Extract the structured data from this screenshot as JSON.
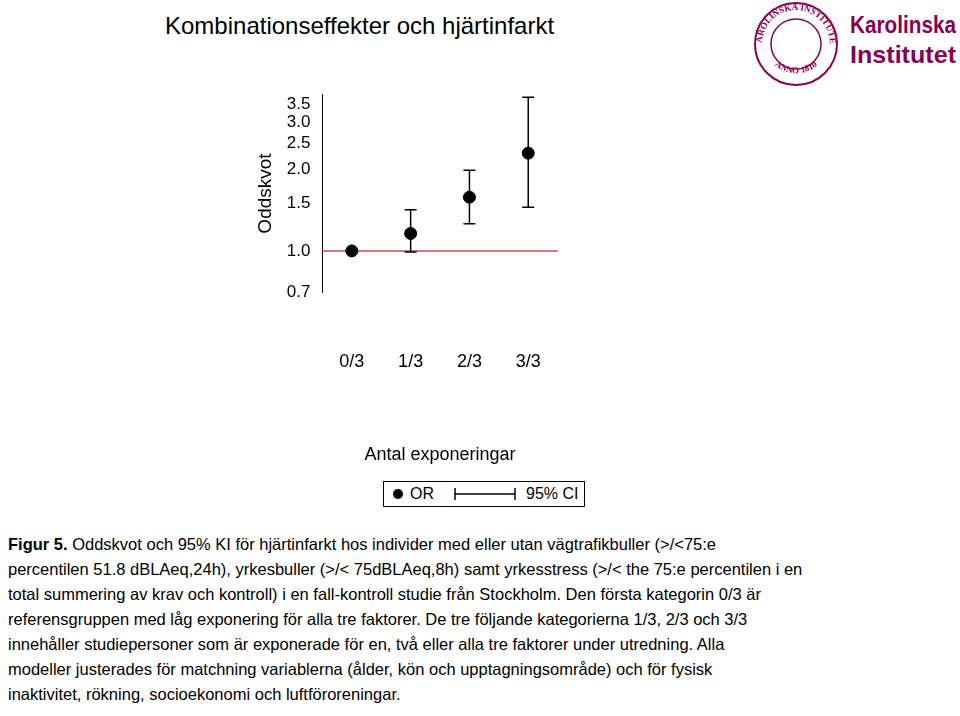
{
  "chart_data": {
    "type": "line",
    "title": "Kombinationseffekter och hjärtinfarkt",
    "x_label": "Antal exponeringar",
    "y_label": "Oddskvot",
    "categories": [
      "0/3",
      "1/3",
      "2/3",
      "3/3"
    ],
    "series": [
      {
        "name": "OR",
        "color": "#000000",
        "marker": "circle",
        "line_style": "none",
        "values": [
          1.0,
          1.16,
          1.58,
          2.3
        ]
      }
    ],
    "error_bars": {
      "name": "95% CI",
      "lower": [
        null,
        0.99,
        1.26,
        1.45
      ],
      "upper": [
        null,
        1.42,
        1.99,
        3.7
      ]
    },
    "reference_line": {
      "value": 1,
      "color": "#c0504d"
    },
    "log": "y",
    "ylim": [
      0.7,
      3.8
    ],
    "yticks": [
      0.7,
      {
        "value": 1,
        "label": "1.0"
      },
      1.5,
      {
        "value": 2,
        "label": "2.0"
      },
      2.5,
      {
        "value": 3,
        "label": "3.0"
      },
      3.5
    ],
    "grid": false
  },
  "caption": {
    "label": "Figur 5.",
    "lines": [
      " Oddskvot och 95% KI för hjärtinfarkt hos individer med eller utan vägtrafikbuller (>/<75:e",
      "percentilen 51.8 dBLAeq,24h), yrkesbuller (>/< 75dBLAeq,8h) samt yrkesstress (>/< the 75:e percentilen i en",
      "total summering av krav och kontroll) i en fall-kontroll studie från Stockholm. Den första kategorin 0/3 är",
      "referensgruppen med låg exponering för alla tre faktorer. De tre följande kategorierna 1/3, 2/3 och 3/3",
      "innehåller studiepersoner som är exponerade för en, två eller alla tre faktorer under utredning. Alla",
      "modeller justerades för matchning variablerna (ålder, kön och upptagningsområde) och för fysisk",
      "inaktivitet, rökning, socioekonomi och luftföroreningar."
    ]
  },
  "logo": {
    "name_lines": [
      "Karolinska",
      "Institutet"
    ],
    "seal_top": "KAROLINSKA INSTITUTET",
    "seal_bottom": "ANNO 1810"
  }
}
